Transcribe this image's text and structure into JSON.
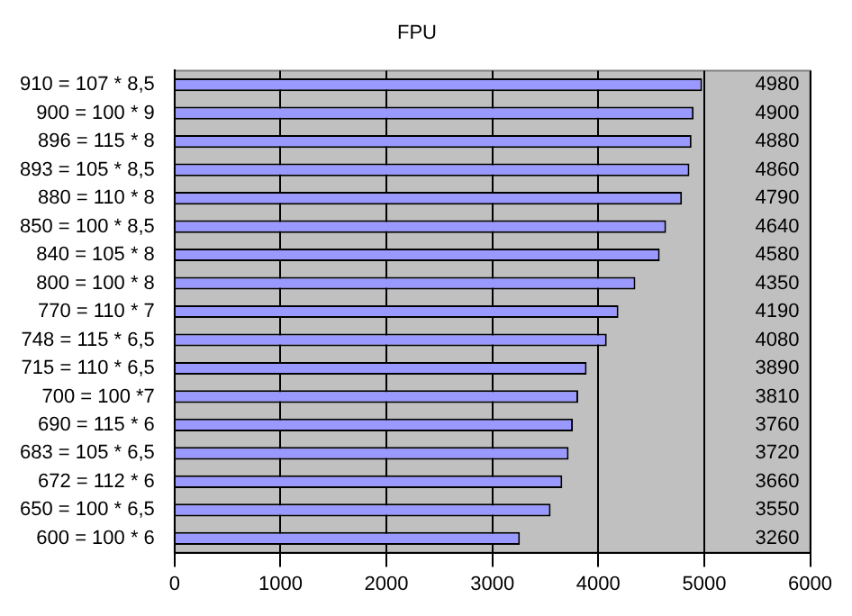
{
  "chart_data": {
    "type": "bar",
    "orientation": "horizontal",
    "title": "FPU",
    "categories": [
      "910 = 107 * 8,5",
      "900 = 100 * 9",
      "896 = 115 * 8",
      "893 = 105 * 8,5",
      "880 = 110 * 8",
      "850 = 100 * 8,5",
      "840 = 105 * 8",
      "800 = 100 * 8",
      "770 = 110 * 7",
      "748 = 115 * 6,5",
      "715 = 110 * 6,5",
      "700 = 100 *7",
      "690 = 115 * 6",
      "683 = 105 * 6,5",
      "672 = 112 * 6",
      "650 = 100 * 6,5",
      "600 = 100 * 6"
    ],
    "values": [
      4980,
      4900,
      4880,
      4860,
      4790,
      4640,
      4580,
      4350,
      4190,
      4080,
      3890,
      3810,
      3760,
      3720,
      3660,
      3550,
      3260
    ],
    "color": "#9999ff",
    "xlim": [
      0,
      6000
    ],
    "xticks": [
      0,
      1000,
      2000,
      3000,
      4000,
      5000,
      6000
    ],
    "grid": "x",
    "legend": false,
    "data_labels": true
  }
}
